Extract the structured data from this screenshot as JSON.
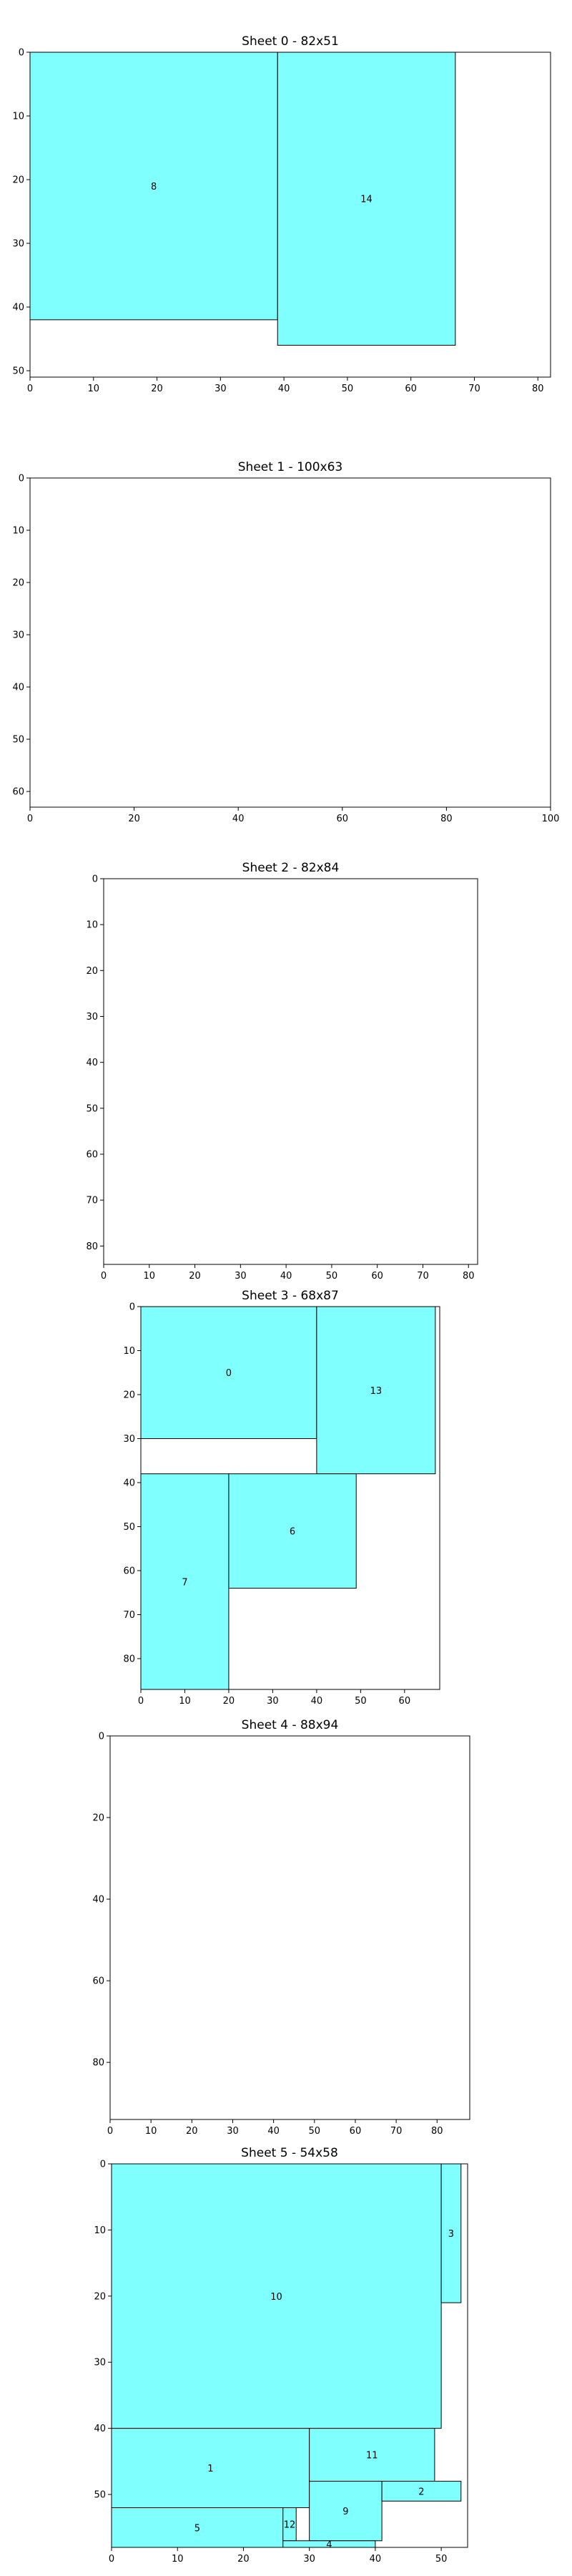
{
  "chart_data": [
    {
      "type": "bar",
      "title": "Sheet 0 - 82x51",
      "xlim": [
        0,
        82
      ],
      "ylim": [
        0,
        51
      ],
      "xticks": [
        0,
        10,
        20,
        30,
        40,
        50,
        60,
        70,
        80
      ],
      "yticks": [
        0,
        10,
        20,
        30,
        40,
        50
      ],
      "y_inverted": true,
      "grid": false,
      "fill_color": "#80ffff",
      "pieces": [
        {
          "id": "8",
          "x": 0,
          "y": 0,
          "w": 39,
          "h": 42
        },
        {
          "id": "14",
          "x": 39,
          "y": 0,
          "w": 28,
          "h": 46
        }
      ]
    },
    {
      "type": "bar",
      "title": "Sheet 1 - 100x63",
      "xlim": [
        0,
        100
      ],
      "ylim": [
        0,
        63
      ],
      "xticks": [
        0,
        20,
        40,
        60,
        80,
        100
      ],
      "yticks": [
        0,
        10,
        20,
        30,
        40,
        50,
        60
      ],
      "y_inverted": true,
      "grid": false,
      "fill_color": "#80ffff",
      "pieces": []
    },
    {
      "type": "bar",
      "title": "Sheet 2 - 82x84",
      "xlim": [
        0,
        82
      ],
      "ylim": [
        0,
        84
      ],
      "xticks": [
        0,
        10,
        20,
        30,
        40,
        50,
        60,
        70,
        80
      ],
      "yticks": [
        0,
        10,
        20,
        30,
        40,
        50,
        60,
        70,
        80
      ],
      "y_inverted": true,
      "grid": false,
      "fill_color": "#80ffff",
      "pieces": []
    },
    {
      "type": "bar",
      "title": "Sheet 3 - 68x87",
      "xlim": [
        0,
        68
      ],
      "ylim": [
        0,
        87
      ],
      "xticks": [
        0,
        10,
        20,
        30,
        40,
        50,
        60
      ],
      "yticks": [
        0,
        10,
        20,
        30,
        40,
        50,
        60,
        70,
        80
      ],
      "y_inverted": true,
      "grid": false,
      "fill_color": "#80ffff",
      "pieces": [
        {
          "id": "0",
          "x": 0,
          "y": 0,
          "w": 40,
          "h": 30
        },
        {
          "id": "13",
          "x": 40,
          "y": 0,
          "w": 27,
          "h": 38
        },
        {
          "id": "7",
          "x": 0,
          "y": 38,
          "w": 20,
          "h": 49
        },
        {
          "id": "6",
          "x": 20,
          "y": 38,
          "w": 29,
          "h": 26
        }
      ]
    },
    {
      "type": "bar",
      "title": "Sheet 4 - 88x94",
      "xlim": [
        0,
        88
      ],
      "ylim": [
        0,
        94
      ],
      "xticks": [
        0,
        10,
        20,
        30,
        40,
        50,
        60,
        70,
        80
      ],
      "yticks": [
        0,
        20,
        40,
        60,
        80
      ],
      "y_inverted": true,
      "grid": false,
      "fill_color": "#80ffff",
      "pieces": []
    },
    {
      "type": "bar",
      "title": "Sheet 5 - 54x58",
      "xlim": [
        0,
        54
      ],
      "ylim": [
        0,
        58
      ],
      "xticks": [
        0,
        10,
        20,
        30,
        40,
        50
      ],
      "yticks": [
        0,
        10,
        20,
        30,
        40,
        50
      ],
      "y_inverted": true,
      "grid": false,
      "fill_color": "#80ffff",
      "pieces": [
        {
          "id": "10",
          "x": 0,
          "y": 0,
          "w": 50,
          "h": 40
        },
        {
          "id": "3",
          "x": 50,
          "y": 0,
          "w": 3,
          "h": 21
        },
        {
          "id": "1",
          "x": 0,
          "y": 40,
          "w": 30,
          "h": 12
        },
        {
          "id": "11",
          "x": 30,
          "y": 40,
          "w": 19,
          "h": 8
        },
        {
          "id": "9",
          "x": 30,
          "y": 48,
          "w": 11,
          "h": 9
        },
        {
          "id": "2",
          "x": 41,
          "y": 48,
          "w": 12,
          "h": 3
        },
        {
          "id": "5",
          "x": 0,
          "y": 52,
          "w": 26,
          "h": 6
        },
        {
          "id": "12",
          "x": 26,
          "y": 52,
          "w": 2,
          "h": 5
        },
        {
          "id": "4",
          "x": 26,
          "y": 57,
          "w": 14,
          "h": 1
        }
      ]
    }
  ]
}
